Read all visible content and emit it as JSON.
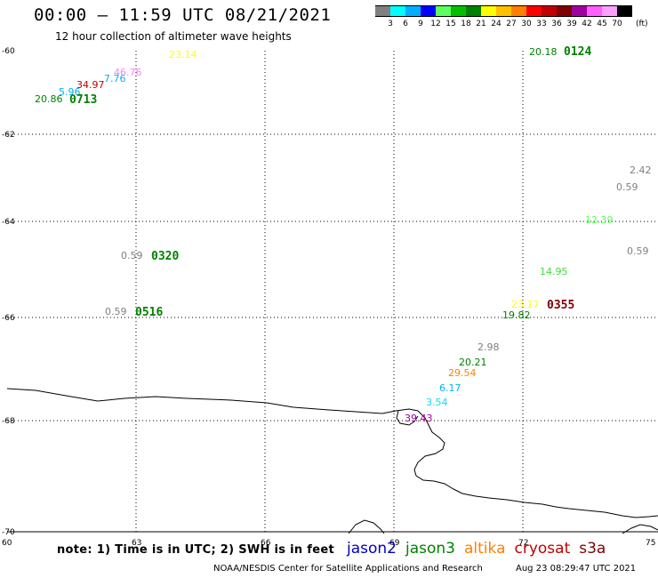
{
  "header": {
    "title": "00:00 – 11:59 UTC 08/21/2021",
    "subtitle": "12 hour collection of altimeter wave heights"
  },
  "legend": {
    "unit": "(ft)",
    "colors": [
      "#808080",
      "#00ffff",
      "#00b0ff",
      "#0000ff",
      "#60ff60",
      "#00c000",
      "#008000",
      "#ffff00",
      "#ffc000",
      "#ff8000",
      "#ff0000",
      "#c00000",
      "#800000",
      "#a000a0",
      "#ff60ff",
      "#ffa0ff",
      "#000000"
    ],
    "ticks": [
      "3",
      "6",
      "9",
      "12",
      "15",
      "18",
      "21",
      "24",
      "27",
      "30",
      "33",
      "36",
      "39",
      "42",
      "45",
      "70"
    ]
  },
  "axes": {
    "x_ticks": [
      "60",
      "63",
      "66",
      "69",
      "72",
      "75"
    ],
    "y_ticks": [
      "-60",
      "-62",
      "-64",
      "-66",
      "-68",
      "-70"
    ]
  },
  "heights": [
    {
      "text": "23.14",
      "color": "#ffff00"
    },
    {
      "text": "46.76",
      "color": "#ff80ff"
    },
    {
      "text": "7.76",
      "color": "#00b0ff"
    },
    {
      "text": "34.97",
      "color": "#c00000"
    },
    {
      "text": "5.96",
      "color": "#00b0ff"
    },
    {
      "text": "20.86",
      "color": "#008000"
    },
    {
      "text": "20.18",
      "color": "#008000"
    },
    {
      "text": "2.42",
      "color": "#808080"
    },
    {
      "text": "0.59",
      "color": "#808080"
    },
    {
      "text": "12.39",
      "color": "#60ff60"
    },
    {
      "text": "0.59",
      "color": "#808080"
    },
    {
      "text": "14.95",
      "color": "#40e040"
    },
    {
      "text": "23.17",
      "color": "#ffff00"
    },
    {
      "text": "19.82",
      "color": "#008000"
    },
    {
      "text": "0.59",
      "color": "#808080"
    },
    {
      "text": "0.59",
      "color": "#808080"
    },
    {
      "text": "2.98",
      "color": "#808080"
    },
    {
      "text": "20.21",
      "color": "#008000"
    },
    {
      "text": "29.54",
      "color": "#ff8000"
    },
    {
      "text": "6.17",
      "color": "#00b0ff"
    },
    {
      "text": "3.54",
      "color": "#00e0ff"
    },
    {
      "text": "39.43",
      "color": "#a000a0"
    }
  ],
  "times": [
    {
      "text": "0124",
      "color": "#008000"
    },
    {
      "text": "0713",
      "color": "#008000"
    },
    {
      "text": "0320",
      "color": "#008000"
    },
    {
      "text": "0516",
      "color": "#008000"
    },
    {
      "text": "0355",
      "color": "#800000"
    }
  ],
  "note": "note:  1) Time is in UTC;  2) SWH is in feet",
  "satellites": [
    {
      "name": "jason2",
      "color": "#0000c0"
    },
    {
      "name": "jason3",
      "color": "#008000"
    },
    {
      "name": "altika",
      "color": "#ff8000"
    },
    {
      "name": "cryosat",
      "color": "#c00000"
    },
    {
      "name": "s3a",
      "color": "#800000"
    }
  ],
  "footer": {
    "credit": "NOAA/NESDIS Center for Satellite Applications and Research",
    "generated": "Aug 23 08:29:47 UTC 2021"
  }
}
